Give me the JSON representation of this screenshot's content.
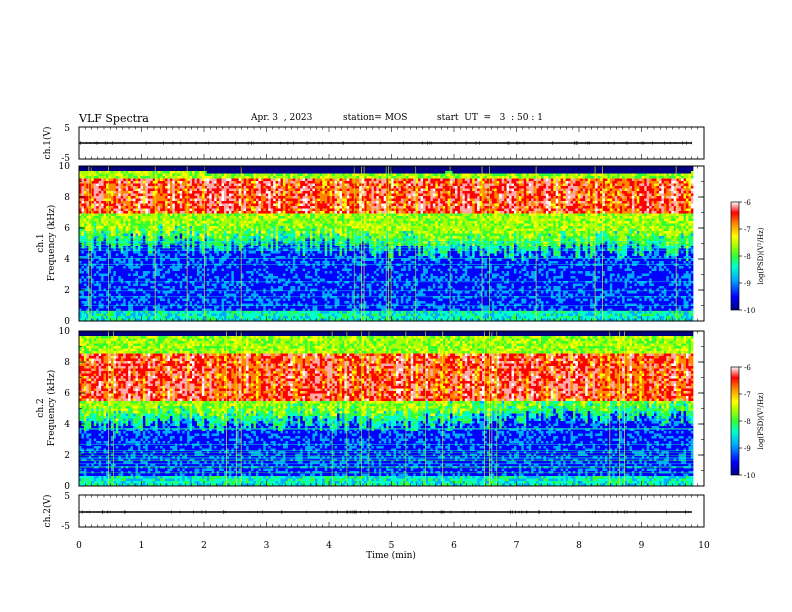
{
  "header": {
    "title": "VLF Spectra",
    "date": "Apr. 3  , 2023",
    "station": "station= MOS",
    "start": "start  UT  =   3  : 50 : 1"
  },
  "chart_data": [
    {
      "type": "line",
      "name": "ch1-waveform",
      "ylabel": "ch.1(V)",
      "ylim": [
        -5,
        5
      ],
      "yticks": [
        5,
        -5
      ],
      "x_range": [
        0,
        10
      ],
      "level": 0
    },
    {
      "type": "heatmap",
      "name": "ch1-spectrogram",
      "ylabel_channel": "ch.1",
      "ylabel": "Frequency (kHz)",
      "ylim": [
        0,
        10
      ],
      "yticks": [
        0,
        2,
        4,
        6,
        8,
        10
      ],
      "x_range": [
        0,
        9.83
      ],
      "colorbar": {
        "label": "log(PSD)(V²/Hz)",
        "range": [
          -10,
          -6
        ],
        "ticks": [
          -6,
          -7,
          -8,
          -9,
          -10
        ]
      },
      "band_top_khz": [
        9.5,
        9.5,
        9.4,
        9.5,
        9.4,
        9.5
      ],
      "noise_floor_khz": [
        5.0,
        5.0,
        4.9,
        4.7,
        4.4,
        4.5,
        4.6,
        4.4
      ],
      "intense_band_khz": [
        7.0,
        9.2
      ]
    },
    {
      "type": "heatmap",
      "name": "ch2-spectrogram",
      "ylabel_channel": "ch.2",
      "ylabel": "Frequency (kHz)",
      "ylim": [
        0,
        10
      ],
      "yticks": [
        0,
        2,
        4,
        6,
        8,
        10
      ],
      "x_range": [
        0,
        9.83
      ],
      "colorbar": {
        "label": "log(PSD)(V²/Hz)",
        "range": [
          -10,
          -6
        ],
        "ticks": [
          -6,
          -7,
          -8,
          -9,
          -10
        ]
      },
      "band_top_khz": [
        9.6,
        9.6,
        9.5,
        9.6,
        9.5,
        9.6
      ],
      "noise_floor_khz": [
        3.8,
        3.9,
        4.0,
        4.2,
        4.1,
        4.3,
        4.5,
        4.4
      ],
      "intense_band_khz": [
        5.5,
        8.5
      ]
    },
    {
      "type": "line",
      "name": "ch2-waveform",
      "ylabel": "ch.2(V)",
      "ylim": [
        -5,
        5
      ],
      "yticks": [
        5,
        -5
      ],
      "x_range": [
        0,
        10
      ],
      "level": 0
    }
  ],
  "xaxis": {
    "label": "Time  (min)",
    "range": [
      0,
      10
    ],
    "ticks": [
      0,
      1,
      2,
      3,
      4,
      5,
      6,
      7,
      8,
      9,
      10
    ]
  },
  "colors": {
    "colormap": [
      "#000080",
      "#0000ff",
      "#00aaff",
      "#00ffcc",
      "#33ff33",
      "#aaff00",
      "#ffff00",
      "#ff8800",
      "#ff0000",
      "#ffaaaa",
      "#ffffff"
    ],
    "frame": "#000000"
  }
}
